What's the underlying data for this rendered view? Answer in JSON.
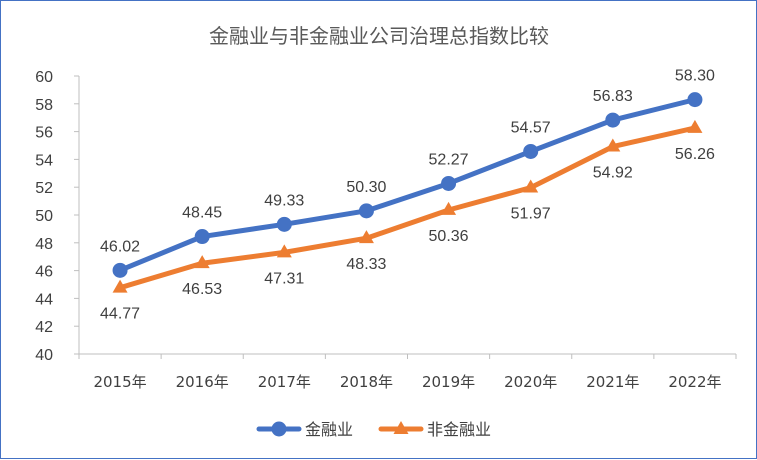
{
  "chart_data": {
    "type": "line",
    "title": "金融业与非金融业公司治理总指数比较",
    "categories": [
      "2015年",
      "2016年",
      "2017年",
      "2018年",
      "2019年",
      "2020年",
      "2021年",
      "2022年"
    ],
    "series": [
      {
        "name": "金融业",
        "color": "#4472C4",
        "marker": "circle",
        "values": [
          46.02,
          48.45,
          49.33,
          50.3,
          52.27,
          54.57,
          56.83,
          58.3
        ],
        "labels": [
          "46.02",
          "48.45",
          "49.33",
          "50.30",
          "52.27",
          "54.57",
          "56.83",
          "58.30"
        ],
        "label_position": "above"
      },
      {
        "name": "非金融业",
        "color": "#ED7D31",
        "marker": "triangle",
        "values": [
          44.77,
          46.53,
          47.31,
          48.33,
          50.36,
          51.97,
          54.92,
          56.26
        ],
        "labels": [
          "44.77",
          "46.53",
          "47.31",
          "48.33",
          "50.36",
          "51.97",
          "54.92",
          "56.26"
        ],
        "label_position": "below"
      }
    ],
    "ylim": [
      40,
      60
    ],
    "yticks": [
      "40",
      "42",
      "44",
      "46",
      "48",
      "50",
      "52",
      "54",
      "56",
      "58",
      "60"
    ],
    "grid": false,
    "legend_position": "bottom"
  }
}
